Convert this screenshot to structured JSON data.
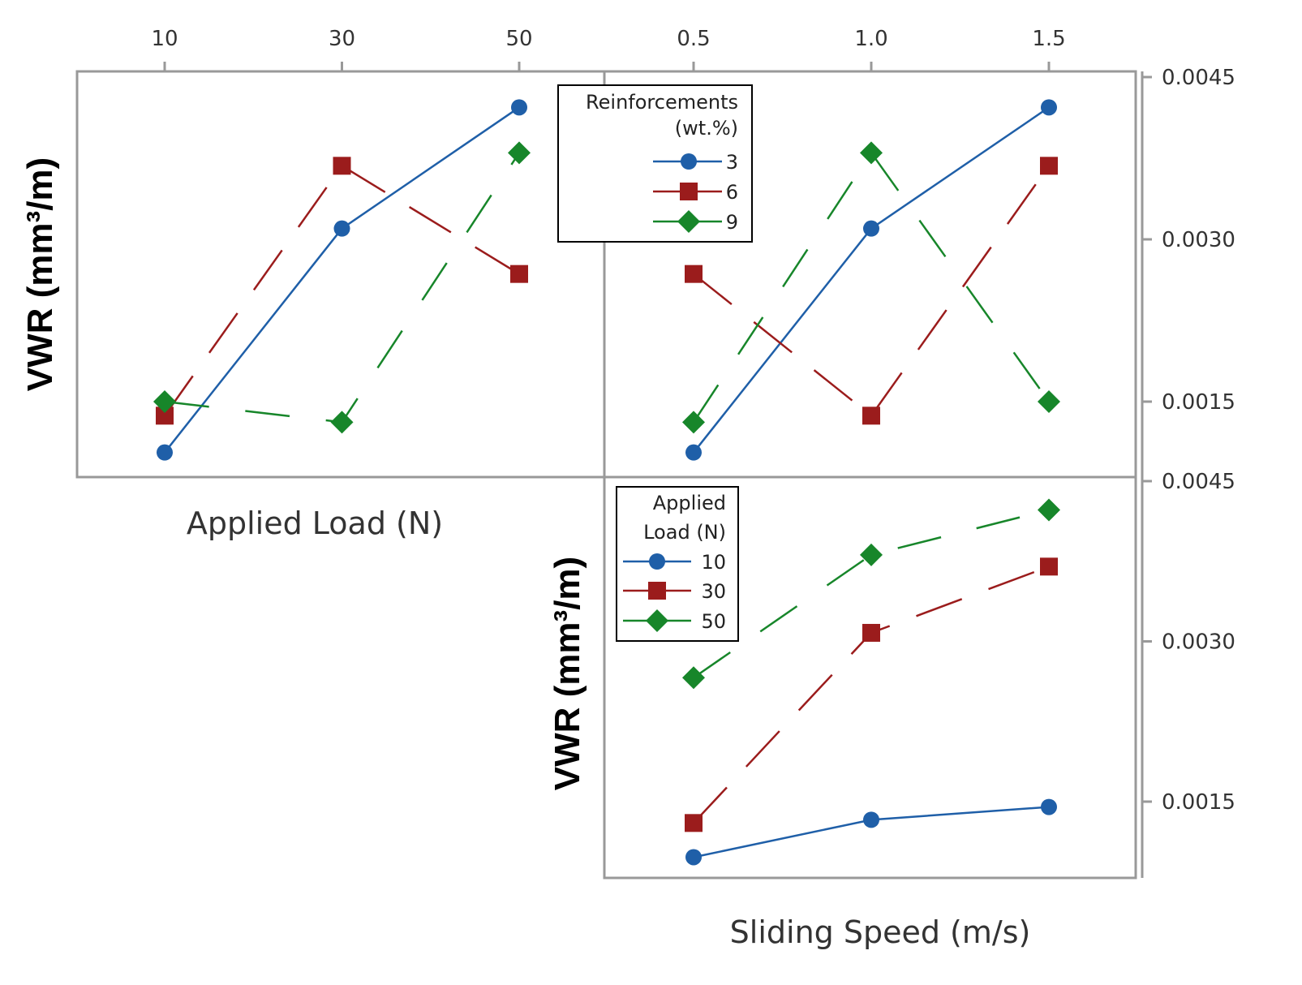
{
  "chart_data": [
    {
      "type": "line",
      "panel": "top-left",
      "xlabel": "Applied Load (N)",
      "ylabel": "VWR (mm³/m)",
      "x": [
        10,
        30,
        50
      ],
      "x_tick_labels": [
        "10",
        "30",
        "50"
      ],
      "ylim": [
        0.0008,
        0.0045
      ],
      "y_tick_labels": [
        "0.0045",
        "0.0030",
        "0.0015"
      ],
      "y_ticks": [
        0.0045,
        0.003,
        0.0015
      ],
      "legend_ref": "Reinforcements (wt.%)",
      "series": [
        {
          "name": "3",
          "color": "#1f5fa8",
          "marker": "circle",
          "values": [
            0.00103,
            0.0031,
            0.00422
          ]
        },
        {
          "name": "6",
          "color": "#9b1c1c",
          "marker": "square",
          "values": [
            0.00137,
            0.00368,
            0.00268
          ]
        },
        {
          "name": "9",
          "color": "#17862a",
          "marker": "diamond",
          "values": [
            0.0015,
            0.00131,
            0.0038
          ]
        }
      ]
    },
    {
      "type": "line",
      "panel": "top-right",
      "x": [
        0.5,
        1.0,
        1.5
      ],
      "x_tick_labels": [
        "0.5",
        "1.0",
        "1.5"
      ],
      "ylim": [
        0.0008,
        0.0045
      ],
      "legend": {
        "title_line1": "Reinforcements",
        "title_line2": "(wt.%)",
        "placement": "top-left"
      },
      "series": [
        {
          "name": "3",
          "color": "#1f5fa8",
          "marker": "circle",
          "values": [
            0.00103,
            0.0031,
            0.00422
          ]
        },
        {
          "name": "6",
          "color": "#9b1c1c",
          "marker": "square",
          "values": [
            0.00268,
            0.00137,
            0.00368
          ]
        },
        {
          "name": "9",
          "color": "#17862a",
          "marker": "diamond",
          "values": [
            0.00131,
            0.0038,
            0.0015
          ]
        }
      ]
    },
    {
      "type": "line",
      "panel": "bottom-right",
      "xlabel": "Sliding Speed (m/s)",
      "ylabel": "VWR (mm³/m)",
      "x": [
        0.5,
        1.0,
        1.5
      ],
      "ylim": [
        0.0008,
        0.0045
      ],
      "y_tick_labels": [
        "0.0045",
        "0.0030",
        "0.0015"
      ],
      "y_ticks": [
        0.0045,
        0.003,
        0.0015
      ],
      "legend": {
        "title_line1": "Applied",
        "title_line2": "Load (N)",
        "placement": "top-left"
      },
      "series": [
        {
          "name": "10",
          "color": "#1f5fa8",
          "marker": "circle",
          "values": [
            0.00098,
            0.00133,
            0.00145
          ]
        },
        {
          "name": "30",
          "color": "#9b1c1c",
          "marker": "square",
          "values": [
            0.0013,
            0.00308,
            0.0037
          ]
        },
        {
          "name": "50",
          "color": "#17862a",
          "marker": "diamond",
          "values": [
            0.00266,
            0.00381,
            0.00423
          ]
        }
      ]
    }
  ]
}
